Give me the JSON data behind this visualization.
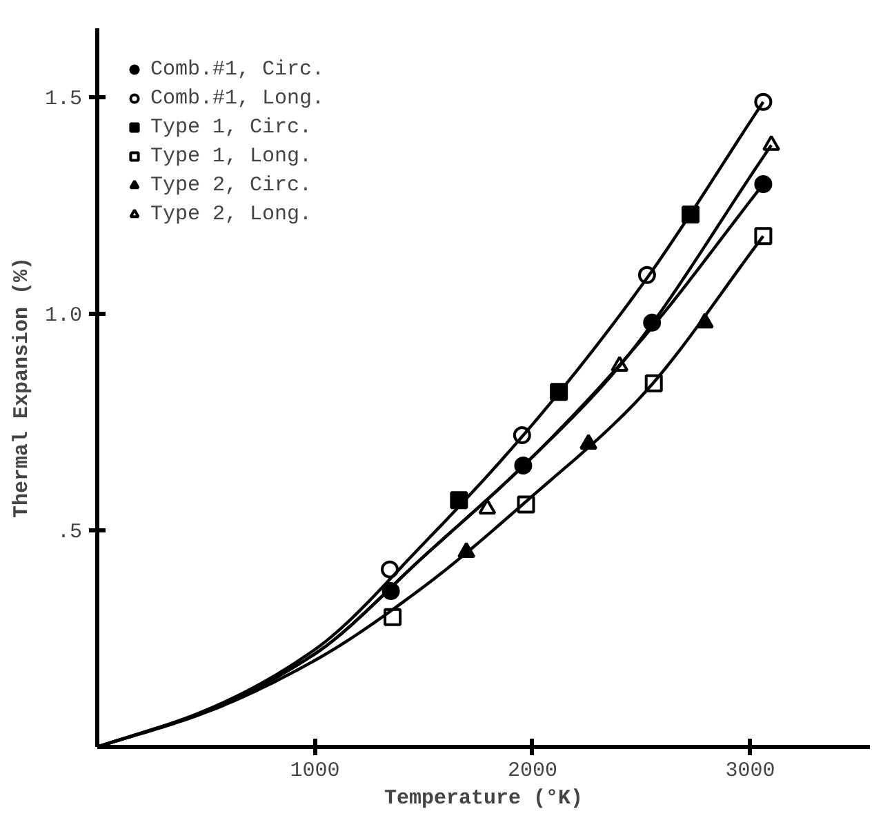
{
  "chart_data": {
    "type": "scatter",
    "xlabel": "Temperature (°K)",
    "ylabel": "Thermal Expansion (%)",
    "xlim": [
      0,
      3550
    ],
    "ylim": [
      0,
      1.66
    ],
    "xticks": [
      1000,
      2000,
      3000
    ],
    "yticks": [
      {
        "value": 0.5,
        "label": ".5"
      },
      {
        "value": 1.0,
        "label": "1.0"
      },
      1.5
    ],
    "grid": false,
    "legend": "top left",
    "series": [
      {
        "name": "Comb.#1, Circ.",
        "color": "#000000",
        "colors": [
          "#000000",
          "#000000",
          "#000000",
          "#000000"
        ],
        "marker": "circle",
        "x": [
          1349,
          1957,
          2549,
          3060
        ],
        "values": [
          0.36,
          0.65,
          0.98,
          1.3
        ]
      },
      {
        "name": "Comb.#1, Long.",
        "color": "#000000",
        "colors": [
          "#ffffff",
          "#ffffff",
          "#ffffff",
          "#ffffff"
        ],
        "marker": "circle",
        "x": [
          1344,
          1952,
          2526,
          3060
        ],
        "values": [
          0.41,
          0.72,
          1.09,
          1.49
        ]
      },
      {
        "name": "Type 1, Circ.",
        "color": "#000000",
        "colors": [
          "#000000",
          "#000000",
          "#000000"
        ],
        "marker": "square",
        "x": [
          1662,
          2121,
          2726
        ],
        "values": [
          0.57,
          0.82,
          1.23
        ]
      },
      {
        "name": "Type 1, Long.",
        "color": "#000000",
        "colors": [
          "#ffffff",
          "#ffffff",
          "#ffffff",
          "#ffffff"
        ],
        "marker": "square",
        "x": [
          1357,
          1970,
          2557,
          3060
        ],
        "values": [
          0.3,
          0.56,
          0.84,
          1.18
        ]
      },
      {
        "name": "Type 2, Circ.",
        "color": "#000000",
        "colors": [
          "#000000",
          "#000000",
          "#000000"
        ],
        "marker": "triangle",
        "x": [
          1696,
          2257,
          2792
        ],
        "values": [
          0.45,
          0.7,
          0.98
        ]
      },
      {
        "name": "Type 2, Long.",
        "color": "#000000",
        "colors": [
          "#ffffff",
          "#ffffff",
          "#ffffff"
        ],
        "marker": "triangle",
        "x": [
          1792,
          2400,
          3097
        ],
        "values": [
          0.55,
          0.88,
          1.39
        ]
      },
      {
        "type": "line",
        "color": "#000000",
        "x": [
          0,
          500,
          1000,
          1500,
          2000,
          2500,
          3060
        ],
        "values": [
          0,
          0.085,
          0.225,
          0.47,
          0.745,
          1.065,
          1.49
        ]
      },
      {
        "type": "line",
        "color": "#000000",
        "x": [
          0,
          500,
          1000,
          1500,
          2000,
          2500,
          3060
        ],
        "values": [
          0,
          0.083,
          0.215,
          0.44,
          0.67,
          0.94,
          1.3
        ]
      },
      {
        "type": "line",
        "color": "#000000",
        "x": [
          0,
          500,
          1000,
          1500,
          2000,
          2400,
          3097
        ],
        "values": [
          0,
          0.083,
          0.215,
          0.44,
          0.67,
          0.88,
          1.39
        ]
      },
      {
        "type": "line",
        "color": "#000000",
        "x": [
          0,
          500,
          1000,
          1500,
          2000,
          2500,
          3060
        ],
        "values": [
          0,
          0.08,
          0.2,
          0.37,
          0.58,
          0.81,
          1.18
        ]
      }
    ]
  }
}
